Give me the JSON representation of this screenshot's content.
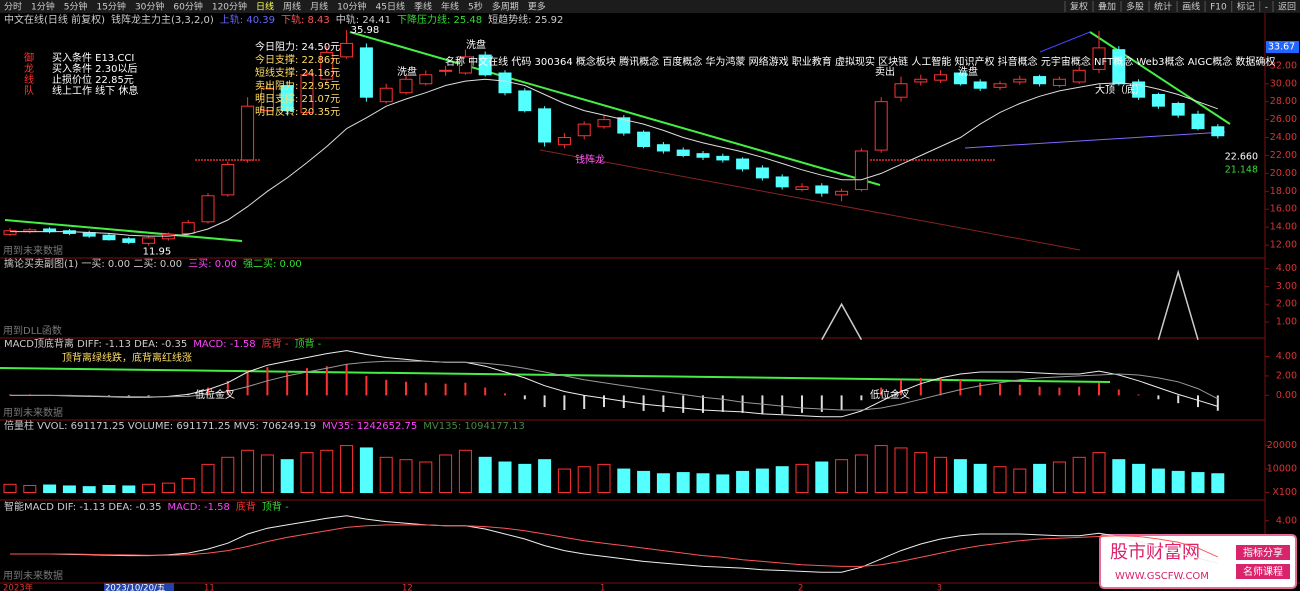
{
  "toolbar": {
    "tabs": [
      "分时",
      "1分钟",
      "5分钟",
      "15分钟",
      "30分钟",
      "60分钟",
      "120分钟",
      "日线",
      "周线",
      "月线",
      "10分钟",
      "45日线",
      "季线",
      "年线",
      "5秒",
      "多周期",
      "更多"
    ],
    "active": 7,
    "tools": [
      "复权",
      "叠加",
      "多股",
      "统计",
      "画线",
      "F10",
      "标记",
      "-",
      "返回"
    ]
  },
  "chart_data": [
    {
      "type": "candlestick",
      "header": [
        {
          "text": "中文在线(日线 前复权)",
          "color": "#cccccc"
        },
        {
          "text": "钱阵龙主力主(3,3,2,0)",
          "color": "#cccccc"
        },
        {
          "text": "上轨: 40.39",
          "color": "#6666ff"
        },
        {
          "text": "下轨: 8.43",
          "color": "#ff5555"
        },
        {
          "text": "中轨: 24.41",
          "color": "#cccccc"
        },
        {
          "text": "下降压力线: 25.48",
          "color": "#33dd33"
        },
        {
          "text": "短趋势线: 25.92",
          "color": "#cccccc"
        }
      ],
      "up_color": "#ff3232",
      "down_color": "#54ffff",
      "ma_color": "#dddddd",
      "open": [
        13.2,
        13.5,
        13.8,
        13.6,
        13.4,
        13.1,
        12.7,
        12.2,
        12.7,
        13.3,
        14.6,
        17.6,
        21.5,
        27.0,
        29.8,
        26.8,
        30.5,
        33.0,
        34.0,
        28.0,
        29.0,
        30.0,
        31.5,
        31.2,
        33.2,
        31.2,
        29.2,
        27.2,
        23.2,
        24.2,
        25.2,
        26.2,
        24.6,
        23.2,
        22.6,
        22.2,
        21.9,
        21.6,
        20.6,
        19.6,
        18.2,
        18.6,
        17.6,
        18.2,
        22.6,
        28.5,
        30.2,
        30.4,
        31.2,
        30.2,
        29.6,
        30.2,
        30.8,
        29.8,
        30.2,
        31.6,
        33.8,
        30.2,
        28.8,
        27.8,
        26.6,
        25.2
      ],
      "high": [
        13.9,
        13.9,
        14.0,
        13.8,
        13.6,
        13.3,
        12.9,
        13.0,
        13.4,
        14.8,
        17.8,
        21.3,
        28.5,
        30.2,
        30.3,
        31.5,
        34.2,
        35.98,
        34.5,
        30.0,
        31.0,
        31.5,
        32.0,
        33.8,
        33.6,
        31.5,
        29.5,
        27.5,
        24.5,
        25.8,
        26.5,
        26.5,
        24.8,
        23.5,
        22.9,
        22.5,
        22.2,
        21.8,
        20.9,
        19.9,
        18.9,
        18.9,
        18.3,
        22.8,
        28.5,
        30.8,
        31.0,
        31.5,
        31.5,
        30.5,
        30.3,
        30.9,
        31.0,
        30.8,
        31.9,
        35.9,
        34.2,
        30.5,
        29.0,
        28.0,
        27.0,
        25.5
      ],
      "low": [
        13.0,
        13.3,
        13.3,
        13.1,
        12.8,
        12.5,
        12.1,
        11.95,
        12.5,
        13.1,
        14.4,
        17.4,
        21.2,
        26.5,
        26.5,
        26.5,
        30.2,
        32.8,
        28.0,
        27.8,
        28.8,
        29.8,
        30.9,
        31.0,
        30.8,
        28.7,
        26.8,
        23.0,
        22.8,
        23.8,
        25.0,
        24.2,
        22.8,
        22.2,
        21.8,
        21.5,
        21.2,
        20.2,
        19.2,
        18.2,
        18.0,
        17.4,
        16.9,
        18.0,
        22.3,
        28.0,
        29.8,
        30.1,
        29.8,
        29.2,
        29.3,
        29.9,
        29.7,
        29.6,
        30.0,
        31.2,
        29.8,
        28.2,
        27.2,
        26.2,
        24.8,
        23.9
      ],
      "close": [
        13.6,
        13.7,
        13.5,
        13.3,
        13.0,
        12.6,
        12.3,
        12.8,
        13.2,
        14.5,
        17.5,
        21.0,
        27.5,
        29.5,
        27.0,
        31.0,
        33.5,
        34.5,
        28.5,
        29.5,
        30.5,
        31.0,
        31.5,
        33.0,
        31.0,
        29.0,
        27.0,
        23.5,
        24.0,
        25.5,
        26.0,
        24.5,
        23.0,
        22.5,
        22.0,
        21.8,
        21.5,
        20.5,
        19.5,
        18.5,
        18.5,
        17.8,
        18.0,
        22.5,
        28.0,
        30.0,
        30.5,
        31.0,
        30.0,
        29.5,
        30.0,
        30.5,
        30.0,
        30.5,
        31.5,
        34.0,
        30.0,
        28.5,
        27.5,
        26.5,
        25.0,
        24.2
      ],
      "ma": [
        13.5,
        13.5,
        13.5,
        13.5,
        13.4,
        13.3,
        13.1,
        13.0,
        13.0,
        13.2,
        13.8,
        14.8,
        16.3,
        18.0,
        19.5,
        21.2,
        23.0,
        25.0,
        26.2,
        27.5,
        28.3,
        29.0,
        29.8,
        30.3,
        30.5,
        30.3,
        29.8,
        28.8,
        27.8,
        27.0,
        26.5,
        26.0,
        25.5,
        24.8,
        24.0,
        23.4,
        22.9,
        22.4,
        21.8,
        21.1,
        20.4,
        19.8,
        19.3,
        19.3,
        20.0,
        21.0,
        22.0,
        23.0,
        24.0,
        25.5,
        26.8,
        27.8,
        28.6,
        29.2,
        29.6,
        30.0,
        30.1,
        29.9,
        29.4,
        28.8,
        28.0,
        27.2
      ],
      "ylim": [
        10.56,
        36.22
      ],
      "yticks": [
        {
          "value": 12,
          "label": "12.00"
        },
        {
          "value": 14,
          "label": "14.00"
        },
        {
          "value": 16,
          "label": "16.00"
        },
        {
          "value": 18,
          "label": "18.00"
        },
        {
          "value": 20,
          "label": "20.00"
        },
        {
          "value": 22,
          "label": "22.00"
        },
        {
          "value": 24,
          "label": "24.00"
        },
        {
          "value": 26,
          "label": "26.00"
        },
        {
          "value": 28,
          "label": "28.00"
        },
        {
          "value": 30,
          "label": "30.00"
        },
        {
          "value": 32,
          "label": "32.00"
        }
      ],
      "signals": [
        {
          "mark": "御",
          "text": "买入条件 E13.CCI"
        },
        {
          "mark": "龙",
          "text": "买入条件 2.30以后"
        },
        {
          "mark": "线",
          "text": "止损价位 22.85元"
        },
        {
          "mark": "队",
          "text": "线上工作 线下 休息"
        }
      ],
      "levels": [
        "今日阻力: 24.50元",
        "今日支撑: 22.86元",
        "短线支撑: 24.16元",
        "卖出阻力: 22.95元",
        "明日支撑: 21.07元",
        "明日反转: 20.35元"
      ],
      "concepts": "名称 中文在线 代码 300364 概念板块 腾讯概念 百度概念 华为鸿蒙 网络游戏 职业教育 虚拟现实 区块链 人工智能 知识产权 抖音概念 元宇宙概念 NFT概念 Web3概念 AIGC概念 数据确权",
      "annotations": [
        "洗盘",
        "洗盘",
        "卖出",
        "洗盘",
        "大顶（底）",
        "钱阵龙"
      ],
      "price_labels": [
        "33.67",
        "22.660",
        "21.148"
      ],
      "note": "用到未来数据"
    },
    {
      "type": "line",
      "header": [
        {
          "text": "擒论买卖副图(1) 一买: 0.00 二买: 0.00",
          "color": "#cccccc"
        },
        {
          "text": "三买: 0.00",
          "color": "#ff44ff"
        },
        {
          "text": "强二买: 0.00",
          "color": "#33dd33"
        }
      ],
      "values": [
        null,
        null,
        null,
        null,
        null,
        null,
        null,
        null,
        null,
        null,
        null,
        null,
        null,
        null,
        null,
        null,
        null,
        null,
        null,
        null,
        null,
        null,
        null,
        null,
        null,
        null,
        null,
        null,
        null,
        null,
        null,
        null,
        null,
        null,
        null,
        null,
        null,
        null,
        null,
        null,
        null,
        0,
        2.0,
        0,
        null,
        null,
        null,
        null,
        null,
        null,
        null,
        null,
        null,
        null,
        null,
        null,
        null,
        null,
        0,
        3.8,
        0,
        null
      ],
      "color": "#cccccc",
      "color2": "#33dd33",
      "ylim": [
        0.1,
        4.6
      ],
      "yticks": [
        {
          "value": 1,
          "label": "1.00"
        },
        {
          "value": 2,
          "label": "2.00"
        },
        {
          "value": 3,
          "label": "3.00"
        },
        {
          "value": 4,
          "label": "4.00"
        }
      ],
      "note": "用到DLL函数"
    },
    {
      "type": "macd",
      "header": [
        {
          "text": "MACD顶底背离 DIFF: -1.13 DEA: -0.35",
          "color": "#cccccc"
        },
        {
          "text": "MACD: -1.58",
          "color": "#ff44ff"
        },
        {
          "text": "底背 -",
          "color": "#ff3333"
        },
        {
          "text": "顶背 -",
          "color": "#33dd33"
        }
      ],
      "macd": [
        0.1,
        0.1,
        0.05,
        0,
        -0.05,
        -0.1,
        -0.15,
        -0.1,
        0,
        0.2,
        0.8,
        1.5,
        2.6,
        2.9,
        2.5,
        2.8,
        3.0,
        3.2,
        2.0,
        1.6,
        1.4,
        1.3,
        1.2,
        1.3,
        0.8,
        0.2,
        -0.4,
        -1.2,
        -1.5,
        -1.4,
        -1.2,
        -1.3,
        -1.6,
        -1.7,
        -1.8,
        -1.8,
        -1.7,
        -1.8,
        -1.9,
        -1.9,
        -1.8,
        -1.7,
        -1.5,
        -0.5,
        0.8,
        1.6,
        1.8,
        1.8,
        1.6,
        1.3,
        1.2,
        1.1,
        0.9,
        0.8,
        0.9,
        1.3,
        0.6,
        0.1,
        -0.4,
        -0.8,
        -1.2,
        -1.58
      ],
      "diff": [
        0,
        0,
        0,
        -0.05,
        -0.1,
        -0.15,
        -0.2,
        -0.2,
        -0.1,
        0.1,
        0.6,
        1.3,
        2.4,
        3.1,
        3.5,
        3.9,
        4.3,
        4.6,
        4.2,
        3.9,
        3.7,
        3.5,
        3.4,
        3.4,
        3.0,
        2.4,
        1.8,
        1.0,
        0.4,
        0,
        -0.3,
        -0.6,
        -0.9,
        -1.1,
        -1.3,
        -1.5,
        -1.6,
        -1.7,
        -1.9,
        -2.0,
        -2.1,
        -2.2,
        -2.2,
        -1.6,
        -0.6,
        0.4,
        1.2,
        1.8,
        2.2,
        2.4,
        2.4,
        2.4,
        2.3,
        2.2,
        2.2,
        2.5,
        2.1,
        1.5,
        0.8,
        0.1,
        -0.5,
        -1.13
      ],
      "dea": [
        0,
        0,
        0,
        0,
        -0.05,
        -0.1,
        -0.12,
        -0.15,
        -0.15,
        -0.1,
        0.1,
        0.4,
        0.9,
        1.5,
        2.0,
        2.4,
        2.8,
        3.2,
        3.4,
        3.5,
        3.5,
        3.5,
        3.4,
        3.4,
        3.3,
        3.1,
        2.8,
        2.4,
        2.0,
        1.6,
        1.3,
        1.0,
        0.7,
        0.4,
        0.1,
        -0.2,
        -0.4,
        -0.7,
        -0.9,
        -1.1,
        -1.3,
        -1.4,
        -1.5,
        -1.5,
        -1.3,
        -0.9,
        -0.4,
        0.1,
        0.6,
        1.0,
        1.3,
        1.6,
        1.8,
        1.9,
        2.0,
        2.1,
        2.2,
        2.1,
        1.8,
        1.4,
        0.7,
        -0.35
      ],
      "up_color": "#ff3232",
      "down_color": "#dddddd",
      "diff_color": "#eeeeee",
      "dea_color": "#999999",
      "ylim": [
        -2.53,
        5.9
      ],
      "yticks": [
        {
          "value": 0,
          "label": "0.00"
        },
        {
          "value": 2,
          "label": "2.00"
        },
        {
          "value": 4,
          "label": "4.00"
        }
      ],
      "annotations": [
        "顶背离绿线跌，底背离红线涨",
        "低位金叉",
        "低位金叉"
      ],
      "note": "用到未来数据"
    },
    {
      "type": "bar",
      "header": [
        {
          "text": "倍量柱 VVOL: 691171.25 VOLUME: 691171.25 MV5: 706249.19",
          "color": "#cccccc"
        },
        {
          "text": "MV35: 1242652.75",
          "color": "#ff44ff"
        },
        {
          "text": "MV135: 1094177.13",
          "color": "#448844"
        }
      ],
      "values": [
        3500,
        3000,
        3200,
        2800,
        2500,
        3000,
        2800,
        3500,
        4000,
        6000,
        12000,
        15000,
        18000,
        16000,
        14000,
        17000,
        18000,
        20000,
        19000,
        15000,
        14000,
        13000,
        16000,
        18000,
        15000,
        13000,
        12000,
        14000,
        10000,
        11000,
        12000,
        10000,
        9000,
        8000,
        8500,
        8000,
        7500,
        9000,
        10000,
        11000,
        12000,
        13000,
        14000,
        16000,
        20000,
        19000,
        17000,
        15000,
        14000,
        12000,
        11000,
        10000,
        12000,
        13000,
        15000,
        17000,
        14000,
        12000,
        10000,
        9000,
        8500,
        8000
      ],
      "up_color": "#ff3232",
      "down_color": "#54ffff",
      "ylim": [
        -3180,
        30900
      ],
      "yticks": [
        {
          "value": 0,
          "label": "X100"
        },
        10000,
        20000
      ]
    },
    {
      "type": "line",
      "header": [
        {
          "text": "智能MACD DIF: -1.13 DEA: -0.35",
          "color": "#cccccc"
        },
        {
          "text": "MACD: -1.58",
          "color": "#ff44ff"
        },
        {
          "text": "底背",
          "color": "#ff3333"
        },
        {
          "text": "顶背 -",
          "color": "#33dd33"
        }
      ],
      "ylim": [
        -3.5,
        6.5
      ],
      "yticks": [
        {
          "value": 4,
          "label": "4.00"
        }
      ],
      "x_labels": [
        "2023年",
        "2023/10/20/五",
        "11",
        "12",
        "1",
        "2",
        "3"
      ],
      "note": "用到未来数据"
    }
  ],
  "watermark": {
    "title": "股市财富网",
    "url": "WWW.GSCFW.COM",
    "tags": [
      "指标分享",
      "名师课程"
    ]
  }
}
